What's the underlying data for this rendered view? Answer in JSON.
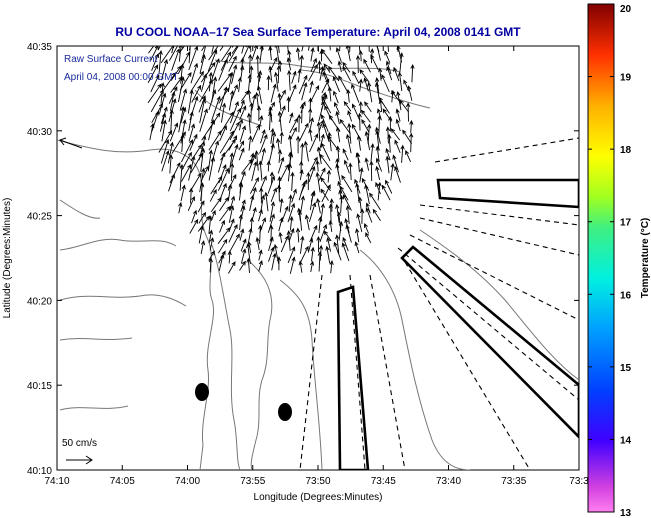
{
  "title": "RU COOL  NOAA–17  Sea Surface Temperature:  April 04, 2008 0141 GMT",
  "annotation": {
    "line1": "Raw Surface Current",
    "line2": "April 04, 2008 00:00 GMT"
  },
  "scale_label": "50 cm/s",
  "x_axis": {
    "label": "Longitude (Degrees:Minutes)",
    "ticks": [
      "74:10",
      "74:05",
      "74:00",
      "73:55",
      "73:50",
      "73:45",
      "73:40",
      "73:35",
      "73:3"
    ]
  },
  "y_axis": {
    "label": "Latitude (Degrees:Minutes)",
    "ticks": [
      "40:35",
      "40:30",
      "40:25",
      "40:20",
      "40:15",
      "40:10"
    ]
  },
  "colorbar": {
    "label": "Temperature (°C)",
    "min": 13,
    "max": 20,
    "ticks": [
      "20",
      "19",
      "18",
      "17",
      "16",
      "15",
      "14",
      "13"
    ]
  },
  "colors": {
    "title": "#0000a0",
    "annotation": "#1a2a9a",
    "vectors": "#000000",
    "contours": "#777777"
  }
}
